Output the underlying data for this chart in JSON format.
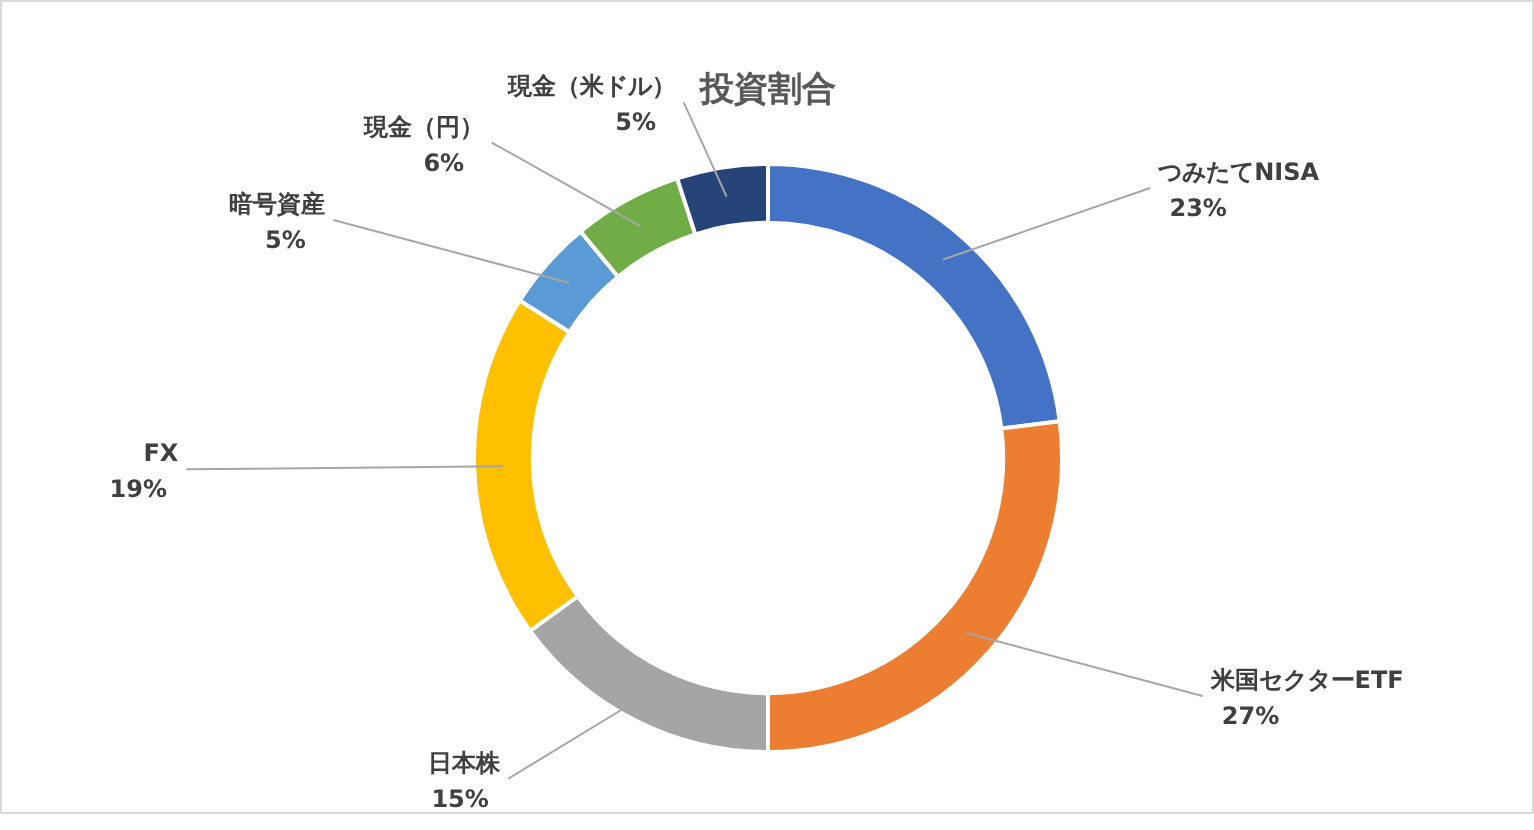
{
  "chart_data": {
    "type": "donut",
    "title": "投資割合",
    "categories": [
      "つみたてNISA",
      "米国セクターETF",
      "日本株",
      "FX",
      "暗号資産",
      "現金（円）",
      "現金（米ドル）"
    ],
    "values": [
      23,
      27,
      15,
      19,
      5,
      6,
      5
    ],
    "value_labels": [
      "23%",
      "27%",
      "15%",
      "19%",
      "5%",
      "6%",
      "5%"
    ],
    "colors": [
      "#4472c4",
      "#ed7d31",
      "#a5a5a5",
      "#ffc000",
      "#5b9bd5",
      "#70ad47",
      "#264478"
    ]
  }
}
